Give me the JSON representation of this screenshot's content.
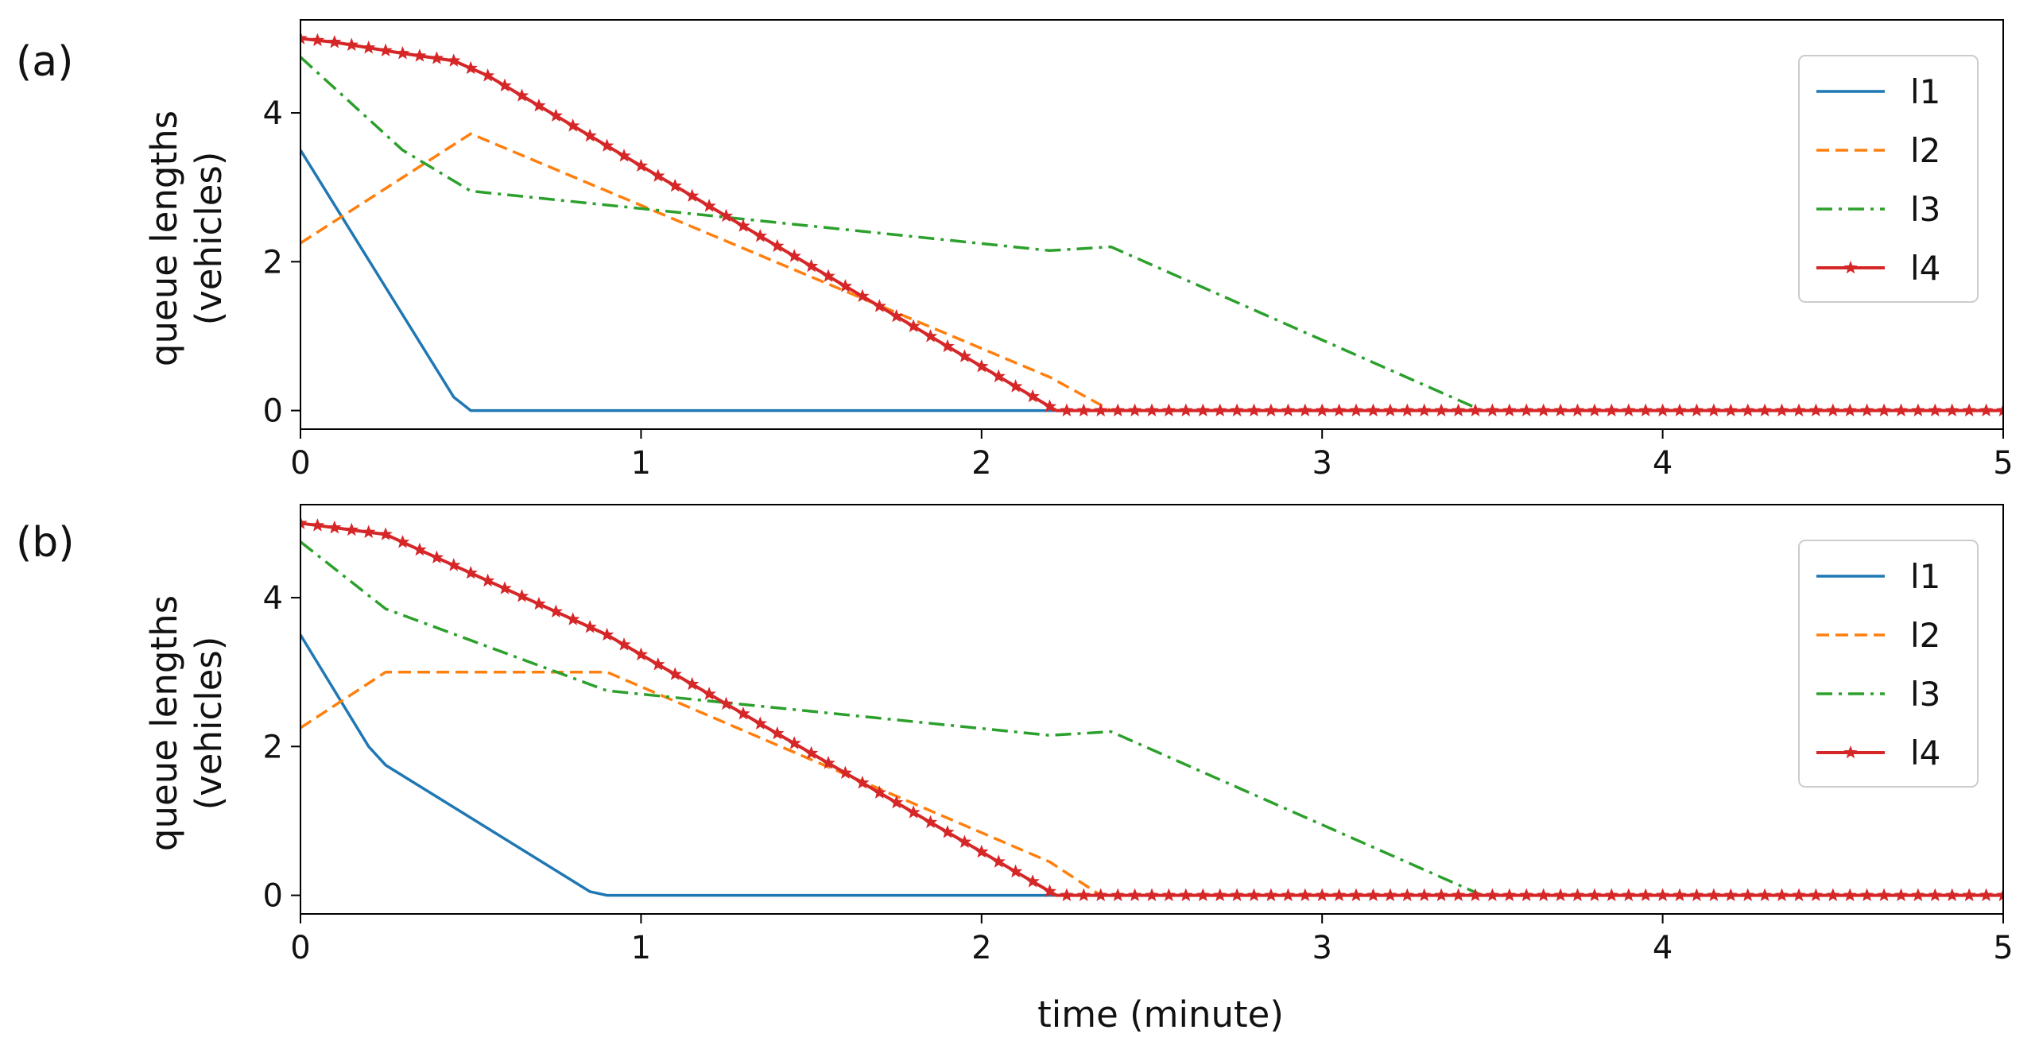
{
  "figure": {
    "xlabel": "time (minute)"
  },
  "chart_data": [
    {
      "type": "line",
      "panel_label": "(a)",
      "xlabel": "",
      "ylabel": "queue lengths",
      "ylabel_line2": "(vehicles)",
      "xlim": [
        0,
        5
      ],
      "ylim": [
        -0.25,
        5.25
      ],
      "xticks": [
        0,
        1,
        2,
        3,
        4,
        5
      ],
      "yticks": [
        0,
        2,
        4
      ],
      "grid": false,
      "legend_position": "top-right",
      "series": [
        {
          "name": "l1",
          "color": "#1f77b4",
          "style": "solid",
          "x": [
            0,
            0.45,
            0.5,
            2.22,
            5
          ],
          "y": [
            3.5,
            0.18,
            0,
            0,
            0
          ]
        },
        {
          "name": "l2",
          "color": "#ff7f0e",
          "style": "dashed",
          "x": [
            0,
            0.5,
            2.2,
            2.38,
            5
          ],
          "y": [
            2.25,
            3.72,
            0.45,
            0,
            0
          ]
        },
        {
          "name": "l3",
          "color": "#2ca02c",
          "style": "dashdot",
          "x": [
            0,
            0.3,
            0.5,
            2.2,
            2.38,
            3.47,
            5
          ],
          "y": [
            4.75,
            3.5,
            2.95,
            2.15,
            2.2,
            0,
            0
          ]
        },
        {
          "name": "l4",
          "color": "#d62728",
          "style": "solid-star",
          "x": [
            0,
            0.1,
            0.3,
            0.45,
            0.55,
            2.22,
            5
          ],
          "y": [
            5.0,
            4.95,
            4.8,
            4.7,
            4.5,
            0,
            0
          ]
        }
      ]
    },
    {
      "type": "line",
      "panel_label": "(b)",
      "xlabel": "time (minute)",
      "ylabel": "queue lengths",
      "ylabel_line2": "(vehicles)",
      "xlim": [
        0,
        5
      ],
      "ylim": [
        -0.25,
        5.25
      ],
      "xticks": [
        0,
        1,
        2,
        3,
        4,
        5
      ],
      "yticks": [
        0,
        2,
        4
      ],
      "grid": false,
      "legend_position": "top-right",
      "series": [
        {
          "name": "l1",
          "color": "#1f77b4",
          "style": "solid",
          "x": [
            0,
            0.2,
            0.25,
            0.85,
            0.9,
            2.22,
            5
          ],
          "y": [
            3.5,
            2.0,
            1.75,
            0.05,
            0,
            0,
            0
          ]
        },
        {
          "name": "l2",
          "color": "#ff7f0e",
          "style": "dashed",
          "x": [
            0,
            0.25,
            0.9,
            2.2,
            2.35,
            5
          ],
          "y": [
            2.25,
            3.0,
            3.0,
            0.45,
            0,
            0
          ]
        },
        {
          "name": "l3",
          "color": "#2ca02c",
          "style": "dashdot",
          "x": [
            0,
            0.25,
            0.9,
            2.2,
            2.38,
            3.47,
            5
          ],
          "y": [
            4.75,
            3.85,
            2.75,
            2.15,
            2.2,
            0,
            0
          ]
        },
        {
          "name": "l4",
          "color": "#d62728",
          "style": "solid-star",
          "x": [
            0,
            0.25,
            0.9,
            2.22,
            5
          ],
          "y": [
            5.0,
            4.85,
            3.5,
            0,
            0
          ]
        }
      ]
    }
  ]
}
